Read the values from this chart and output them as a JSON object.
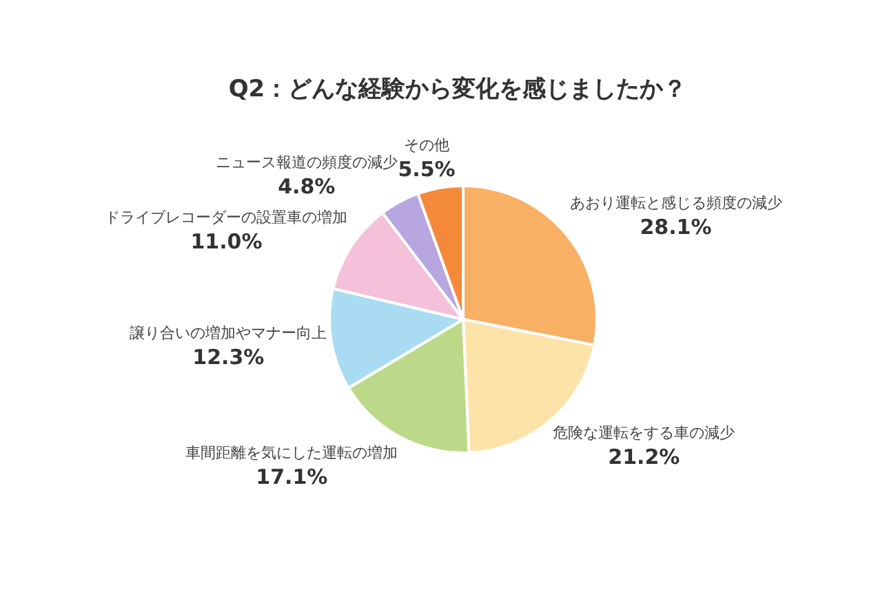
{
  "chart_data": {
    "type": "pie",
    "title": "Q2：どんな経験から変化を感じましたか？",
    "categories": [
      "あおり運転と感じる頻度の減少",
      "危険な運転をする車の減少",
      "車間距離を気にした運転の増加",
      "譲り合いの増加やマナー向上",
      "ドライブレコーダーの設置車の増加",
      "ニュース報道の頻度の減少",
      "その他"
    ],
    "values": [
      28.1,
      21.2,
      17.1,
      12.3,
      11.0,
      4.8,
      5.5
    ],
    "colors": [
      "#f8b065",
      "#fde3a8",
      "#bcd98a",
      "#a9dcf3",
      "#f4c0da",
      "#b7a6df",
      "#f5893a"
    ],
    "value_labels": [
      "28.1%",
      "21.2%",
      "17.1%",
      "12.3%",
      "11.0%",
      "4.8%",
      "5.5%"
    ],
    "legend": false
  }
}
